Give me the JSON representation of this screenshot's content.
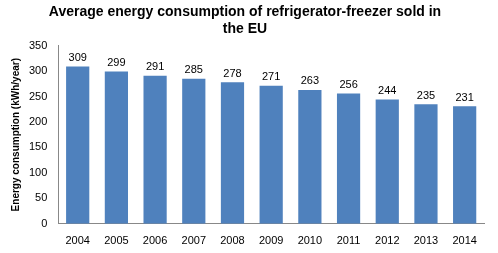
{
  "chart_data": {
    "type": "bar",
    "title": "Average energy consumption of refrigerator-freezer sold in the EU",
    "y_label": "Energy consumption (kWh/year)",
    "categories": [
      "2004",
      "2005",
      "2006",
      "2007",
      "2008",
      "2009",
      "2010",
      "2011",
      "2012",
      "2013",
      "2014"
    ],
    "values": [
      309,
      299,
      291,
      285,
      278,
      271,
      263,
      256,
      244,
      235,
      231
    ],
    "color": "#4f81bd",
    "ylim": [
      0,
      350
    ],
    "yticks": [
      0,
      50,
      100,
      150,
      200,
      250,
      300,
      350
    ],
    "grid": false,
    "data_labels": true
  }
}
